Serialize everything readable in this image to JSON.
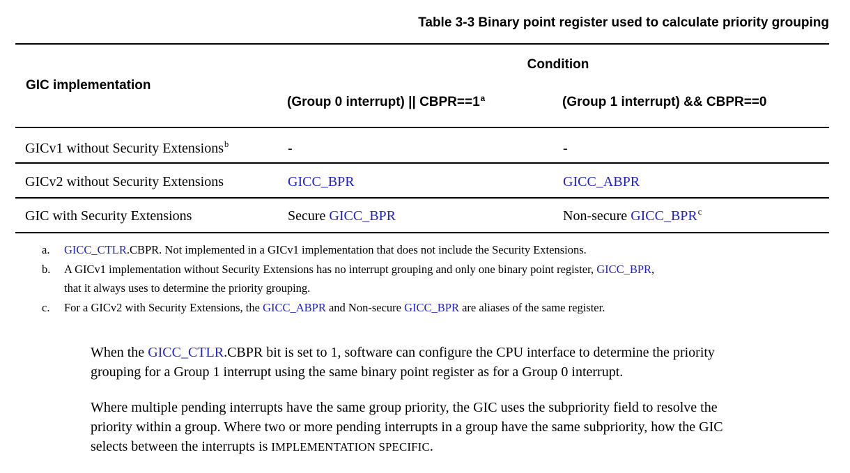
{
  "page": {
    "link_color": "#2222cc",
    "text_color": "#000000",
    "background": "#ffffff"
  },
  "table": {
    "title": "Table 3-3 Binary point register used to calculate priority grouping",
    "header": {
      "col1": "GIC implementation",
      "condition": "Condition",
      "col2": [
        {
          "text": "(Group 0 interrupt) || CBPR==1"
        },
        {
          "text": "a",
          "style": "sup"
        }
      ],
      "col3": [
        {
          "text": "(Group 1 interrupt) && CBPR==0"
        }
      ]
    },
    "rows": [
      {
        "impl": [
          {
            "text": "GICv1 without Security Extensions"
          },
          {
            "text": "b",
            "style": "sup"
          }
        ],
        "cond0": [
          {
            "text": "-"
          }
        ],
        "cond1": [
          {
            "text": "-"
          }
        ]
      },
      {
        "impl": [
          {
            "text": "GICv2 without Security Extensions"
          }
        ],
        "cond0": [
          {
            "text": "GICC_BPR",
            "style": "link"
          }
        ],
        "cond1": [
          {
            "text": "GICC_ABPR",
            "style": "link"
          }
        ]
      },
      {
        "impl": [
          {
            "text": "GIC with Security Extensions"
          }
        ],
        "cond0": [
          {
            "text": "Secure "
          },
          {
            "text": "GICC_BPR",
            "style": "link"
          }
        ],
        "cond1": [
          {
            "text": "Non-secure "
          },
          {
            "text": "GICC_BPR",
            "style": "link"
          },
          {
            "text": "c",
            "style": "sup"
          }
        ]
      }
    ],
    "footnotes": [
      {
        "marker": "a.",
        "segments": [
          {
            "text": "GICC_CTLR",
            "style": "link"
          },
          {
            "text": ".CBPR. Not implemented in a GICv1 implementation that does not include the Security Extensions."
          }
        ]
      },
      {
        "marker": "b.",
        "segments": [
          {
            "text": "A GICv1 implementation without Security Extensions has no interrupt grouping and only one binary point register, "
          },
          {
            "text": "GICC_BPR",
            "style": "link"
          },
          {
            "text": ","
          },
          {
            "break": true
          },
          {
            "text": "that it always uses to determine the priority grouping."
          }
        ]
      },
      {
        "marker": "c.",
        "segments": [
          {
            "text": "For a GICv2 with Security Extensions, the "
          },
          {
            "text": "GICC_ABPR",
            "style": "link"
          },
          {
            "text": " and Non-secure "
          },
          {
            "text": "GICC_BPR",
            "style": "link"
          },
          {
            "text": " are aliases of the same register."
          }
        ]
      }
    ]
  },
  "paragraphs": [
    {
      "segments": [
        {
          "text": "When the "
        },
        {
          "text": "GICC_CTLR",
          "style": "link"
        },
        {
          "text": ".CBPR bit is set to 1, software can configure the CPU interface to determine the priority"
        },
        {
          "break": true
        },
        {
          "text": "grouping for a Group 1 interrupt using the same binary point register as for a Group 0 interrupt."
        }
      ]
    },
    {
      "segments": [
        {
          "text": "Where multiple pending interrupts have the same group priority, the GIC uses the subpriority field to resolve the"
        },
        {
          "break": true
        },
        {
          "text": "priority within a group. Where two or more pending interrupts in a group have the same subpriority, how the GIC"
        },
        {
          "break": true
        },
        {
          "text": "selects between the interrupts is "
        },
        {
          "text": "IMPLEMENTATION SPECIFIC",
          "style": "smallcaps"
        },
        {
          "text": "."
        }
      ]
    }
  ]
}
